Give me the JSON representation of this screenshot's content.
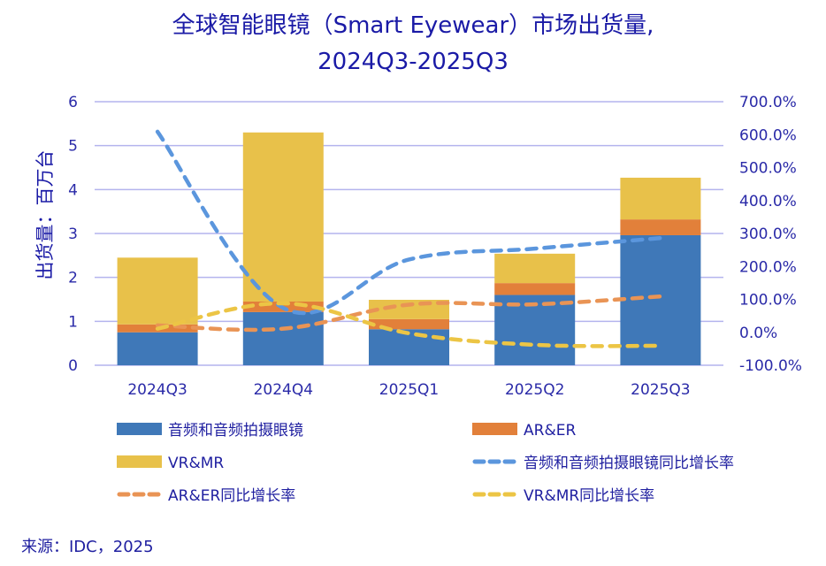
{
  "chart_data": {
    "type": "bar",
    "subtype": "stacked-bar-with-lines",
    "title": "全球智能眼镜（Smart Eyewear）市场出货量,",
    "subtitle": "2024Q3-2025Q3",
    "ylabel": "出货量：百万台",
    "y2label": "",
    "xlabel": "",
    "categories": [
      "2024Q3",
      "2024Q4",
      "2025Q1",
      "2025Q2",
      "2025Q3"
    ],
    "ylim": [
      0,
      6
    ],
    "yticks": [
      "0",
      "1",
      "2",
      "3",
      "4",
      "5",
      "6"
    ],
    "y2lim": [
      -100,
      700
    ],
    "y2ticks": [
      "-100.0%",
      "0.0%",
      "100.0%",
      "200.0%",
      "300.0%",
      "400.0%",
      "500.0%",
      "600.0%",
      "700.0%"
    ],
    "grid": true,
    "legend_position": "bottom",
    "series": [
      {
        "name": "音频和音频拍摄眼镜",
        "kind": "bar",
        "axis": "left",
        "color": "#3f78b8",
        "values": [
          0.75,
          1.21,
          0.82,
          1.6,
          2.96
        ]
      },
      {
        "name": "AR&ER",
        "kind": "bar",
        "axis": "left",
        "color": "#e2803a",
        "values": [
          0.18,
          0.24,
          0.23,
          0.27,
          0.36
        ]
      },
      {
        "name": "VR&MR",
        "kind": "bar",
        "axis": "left",
        "color": "#e8c14a",
        "values": [
          1.52,
          3.85,
          0.44,
          0.67,
          0.95
        ]
      },
      {
        "name": "音频和音频拍摄眼镜同比增长率",
        "kind": "line",
        "axis": "right",
        "color": "#5b96dd",
        "values": [
          609,
          74,
          221,
          254,
          286
        ]
      },
      {
        "name": "AR&ER同比增长率",
        "kind": "line",
        "axis": "right",
        "color": "#e99455",
        "values": [
          21,
          11,
          84,
          85,
          109
        ]
      },
      {
        "name": "VR&MR同比增长率",
        "kind": "line",
        "axis": "right",
        "color": "#ecc545",
        "values": [
          11,
          88,
          -3,
          -38,
          -41
        ]
      }
    ],
    "gridline_color": "#b4b4ee"
  },
  "source": "来源：IDC，2025"
}
